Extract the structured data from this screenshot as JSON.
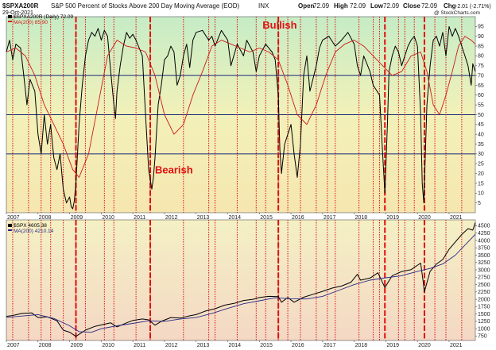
{
  "header": {
    "symbol": "$SPXA200R",
    "description": "S&P 500 Percent of Stocks Above 200 Day Moving Average (EOD)",
    "index": "INX",
    "date": "29-Oct-2021",
    "open_label": "Open",
    "open": "72.09",
    "high_label": "High",
    "high": "72.09",
    "low_label": "Low",
    "low": "72.09",
    "close_label": "Close",
    "close": "72.09",
    "chg_label": "Chg",
    "chg": "-2.01 (-2.71%)",
    "watermark": "@ StockCharts.com"
  },
  "colors": {
    "price_line": "#000000",
    "ma_upper": "#d01818",
    "ma_lower": "#2a2a8a",
    "vertical_markers": "#e01010",
    "horizontal_levels": "#1a2a7a",
    "bg_top": "#c6ecc6",
    "bg_mid": "#f4f0b0",
    "bg_bottom": "#f6dcc4"
  },
  "chart_data": [
    {
      "type": "line",
      "legend": [
        "$SPXA200R (Daily) 72.09",
        "MA(200) 85.90"
      ],
      "ylim": [
        0,
        100
      ],
      "y_ticks": [
        "95",
        "90",
        "85",
        "80",
        "75",
        "70",
        "65",
        "60",
        "55",
        "50",
        "45",
        "40",
        "35",
        "30",
        "25",
        "20",
        "15",
        "10",
        "5"
      ],
      "y_tick_values": [
        95,
        90,
        85,
        80,
        75,
        70,
        65,
        60,
        55,
        50,
        45,
        40,
        35,
        30,
        25,
        20,
        15,
        10,
        5
      ],
      "horizontal_levels": [
        70,
        50,
        30
      ],
      "x_ticks": [
        "2007",
        "2008",
        "2009",
        "2010",
        "2011",
        "2012",
        "2013",
        "2014",
        "2015",
        "2016",
        "2017",
        "2018",
        "2019",
        "2020",
        "2021"
      ],
      "x_tick_values": [
        2007,
        2008,
        2009,
        2010,
        2011,
        2012,
        2013,
        2014,
        2015,
        2016,
        2017,
        2018,
        2019,
        2020,
        2021
      ],
      "xlim": [
        2007.0,
        2021.83
      ],
      "annotations": [
        {
          "text": "Bullish",
          "x": 2015.1,
          "y": 94
        },
        {
          "text": "Bearish",
          "x": 2011.7,
          "y": 20
        }
      ],
      "series": [
        {
          "name": "$SPXA200R (Daily) 72.09",
          "x": [
            2007.0,
            2007.1,
            2007.2,
            2007.3,
            2007.45,
            2007.55,
            2007.65,
            2007.75,
            2007.9,
            2008.0,
            2008.1,
            2008.2,
            2008.3,
            2008.4,
            2008.5,
            2008.6,
            2008.7,
            2008.8,
            2008.9,
            2009.0,
            2009.05,
            2009.1,
            2009.15,
            2009.2,
            2009.3,
            2009.4,
            2009.5,
            2009.6,
            2009.7,
            2009.8,
            2009.9,
            2010.0,
            2010.1,
            2010.2,
            2010.3,
            2010.4,
            2010.45,
            2010.5,
            2010.6,
            2010.7,
            2010.8,
            2010.9,
            2011.0,
            2011.1,
            2011.2,
            2011.3,
            2011.4,
            2011.5,
            2011.6,
            2011.65,
            2011.7,
            2011.8,
            2011.9,
            2012.0,
            2012.1,
            2012.2,
            2012.3,
            2012.4,
            2012.5,
            2012.6,
            2012.7,
            2012.8,
            2012.9,
            2013.0,
            2013.2,
            2013.4,
            2013.5,
            2013.6,
            2013.8,
            2014.0,
            2014.1,
            2014.3,
            2014.5,
            2014.6,
            2014.8,
            2014.9,
            2015.0,
            2015.2,
            2015.4,
            2015.5,
            2015.6,
            2015.65,
            2015.7,
            2015.8,
            2015.9,
            2016.0,
            2016.1,
            2016.2,
            2016.3,
            2016.4,
            2016.5,
            2016.6,
            2016.8,
            2016.9,
            2017.0,
            2017.2,
            2017.4,
            2017.6,
            2017.8,
            2018.0,
            2018.1,
            2018.2,
            2018.3,
            2018.5,
            2018.6,
            2018.8,
            2018.9,
            2018.97,
            2019.05,
            2019.1,
            2019.2,
            2019.3,
            2019.4,
            2019.5,
            2019.6,
            2019.7,
            2019.8,
            2019.9,
            2020.0,
            2020.1,
            2020.15,
            2020.2,
            2020.25,
            2020.3,
            2020.4,
            2020.5,
            2020.6,
            2020.7,
            2020.8,
            2020.9,
            2021.0,
            2021.1,
            2021.2,
            2021.3,
            2021.4,
            2021.5,
            2021.6,
            2021.7,
            2021.75,
            2021.83
          ],
          "values": [
            82,
            88,
            78,
            86,
            84,
            70,
            55,
            68,
            62,
            40,
            30,
            50,
            35,
            45,
            28,
            22,
            30,
            12,
            5,
            8,
            3,
            2,
            6,
            15,
            45,
            65,
            80,
            88,
            92,
            90,
            94,
            88,
            93,
            90,
            72,
            55,
            48,
            62,
            75,
            85,
            92,
            89,
            91,
            88,
            84,
            80,
            50,
            22,
            12,
            18,
            28,
            55,
            65,
            78,
            80,
            85,
            82,
            65,
            70,
            80,
            86,
            74,
            88,
            92,
            93,
            88,
            90,
            85,
            93,
            88,
            75,
            86,
            80,
            88,
            82,
            72,
            80,
            86,
            82,
            78,
            60,
            32,
            20,
            35,
            40,
            45,
            30,
            18,
            35,
            70,
            80,
            62,
            75,
            84,
            88,
            90,
            85,
            88,
            92,
            86,
            75,
            70,
            80,
            72,
            65,
            60,
            30,
            10,
            45,
            72,
            80,
            85,
            82,
            75,
            80,
            85,
            88,
            90,
            85,
            50,
            15,
            5,
            30,
            55,
            75,
            88,
            90,
            85,
            92,
            80,
            95,
            90,
            94,
            90,
            85,
            80,
            75,
            65,
            76,
            72
          ]
        },
        {
          "name": "MA(200) 85.90",
          "x": [
            2007.0,
            2007.3,
            2007.6,
            2007.9,
            2008.2,
            2008.5,
            2008.8,
            2009.1,
            2009.3,
            2009.6,
            2009.9,
            2010.2,
            2010.5,
            2010.8,
            2011.1,
            2011.4,
            2011.7,
            2012.0,
            2012.3,
            2012.6,
            2012.9,
            2013.2,
            2013.5,
            2013.8,
            2014.1,
            2014.4,
            2014.7,
            2015.0,
            2015.3,
            2015.6,
            2015.9,
            2016.2,
            2016.5,
            2016.8,
            2017.1,
            2017.4,
            2017.7,
            2018.0,
            2018.3,
            2018.6,
            2018.9,
            2019.2,
            2019.5,
            2019.8,
            2020.1,
            2020.3,
            2020.5,
            2020.7,
            2020.9,
            2021.1,
            2021.3,
            2021.5,
            2021.7,
            2021.83
          ],
          "values": [
            82,
            84,
            80,
            70,
            55,
            45,
            35,
            22,
            18,
            30,
            55,
            80,
            88,
            85,
            84,
            82,
            70,
            50,
            40,
            45,
            60,
            72,
            85,
            88,
            86,
            84,
            82,
            84,
            82,
            78,
            65,
            50,
            45,
            55,
            70,
            82,
            86,
            88,
            85,
            80,
            75,
            70,
            72,
            80,
            82,
            72,
            55,
            50,
            60,
            72,
            85,
            90,
            88,
            86
          ]
        }
      ]
    },
    {
      "type": "line",
      "legend": [
        "$SPX 4605.38",
        "MA(200) 4210.14"
      ],
      "ylim": [
        600,
        4700
      ],
      "y_ticks": [
        "4500",
        "4250",
        "4000",
        "3750",
        "3500",
        "3250",
        "3000",
        "2750",
        "2500",
        "2250",
        "2000",
        "1750",
        "1500",
        "1250",
        "1000",
        "750"
      ],
      "y_tick_values": [
        4500,
        4250,
        4000,
        3750,
        3500,
        3250,
        3000,
        2750,
        2500,
        2250,
        2000,
        1750,
        1500,
        1250,
        1000,
        750
      ],
      "x_ticks": [
        "2007",
        "2008",
        "2009",
        "2010",
        "2011",
        "2012",
        "2013",
        "2014",
        "2015",
        "2016",
        "2017",
        "2018",
        "2019",
        "2020",
        "2021"
      ],
      "x_tick_values": [
        2007,
        2008,
        2009,
        2010,
        2011,
        2012,
        2013,
        2014,
        2015,
        2016,
        2017,
        2018,
        2019,
        2020,
        2021
      ],
      "xlim": [
        2007.0,
        2021.83
      ],
      "series": [
        {
          "name": "$SPX 4605.38",
          "x": [
            2007.0,
            2007.2,
            2007.5,
            2007.8,
            2008.0,
            2008.3,
            2008.6,
            2008.8,
            2009.0,
            2009.2,
            2009.5,
            2009.8,
            2010.0,
            2010.3,
            2010.5,
            2010.8,
            2011.0,
            2011.3,
            2011.5,
            2011.7,
            2011.9,
            2012.2,
            2012.5,
            2012.8,
            2013.0,
            2013.3,
            2013.6,
            2013.9,
            2014.2,
            2014.5,
            2014.8,
            2015.0,
            2015.3,
            2015.6,
            2015.7,
            2015.9,
            2016.1,
            2016.4,
            2016.7,
            2017.0,
            2017.3,
            2017.6,
            2017.9,
            2018.1,
            2018.2,
            2018.5,
            2018.75,
            2018.97,
            2019.2,
            2019.5,
            2019.8,
            2020.1,
            2020.18,
            2020.22,
            2020.4,
            2020.6,
            2020.8,
            2021.0,
            2021.2,
            2021.4,
            2021.6,
            2021.75,
            2021.83
          ],
          "values": [
            1420,
            1450,
            1520,
            1540,
            1380,
            1400,
            1270,
            950,
            880,
            740,
            950,
            1080,
            1130,
            1200,
            1060,
            1200,
            1280,
            1330,
            1300,
            1120,
            1250,
            1380,
            1360,
            1440,
            1480,
            1600,
            1680,
            1800,
            1860,
            1960,
            2000,
            2060,
            2100,
            2090,
            1900,
            2060,
            1900,
            2070,
            2170,
            2270,
            2380,
            2450,
            2580,
            2850,
            2650,
            2720,
            2900,
            2400,
            2800,
            2940,
            3010,
            3230,
            2600,
            2250,
            2950,
            3200,
            3350,
            3700,
            3950,
            4200,
            4400,
            4350,
            4605
          ]
        },
        {
          "name": "MA(200) 4210.14",
          "x": [
            2007.0,
            2007.5,
            2008.0,
            2008.5,
            2009.0,
            2009.3,
            2009.7,
            2010.0,
            2010.5,
            2011.0,
            2011.5,
            2012.0,
            2012.5,
            2013.0,
            2013.5,
            2014.0,
            2014.5,
            2015.0,
            2015.5,
            2016.0,
            2016.5,
            2017.0,
            2017.5,
            2018.0,
            2018.5,
            2019.0,
            2019.5,
            2020.0,
            2020.4,
            2020.8,
            2021.2,
            2021.6,
            2021.83
          ],
          "values": [
            1380,
            1430,
            1480,
            1350,
            1100,
            900,
            880,
            1000,
            1100,
            1180,
            1270,
            1250,
            1330,
            1380,
            1520,
            1690,
            1850,
            1950,
            2050,
            2020,
            2010,
            2100,
            2300,
            2500,
            2650,
            2730,
            2800,
            2950,
            3050,
            3200,
            3500,
            3950,
            4210
          ]
        }
      ]
    }
  ],
  "vertical_markers": [
    2007.2,
    2007.7,
    2008.1,
    2008.4,
    2008.8,
    2009.2,
    2009.5,
    2010.1,
    2010.4,
    2011.1,
    2011.55,
    2012.6,
    2013.4,
    2013.6,
    2014.3,
    2014.9,
    2015.2,
    2015.6,
    2015.9,
    2016.3,
    2016.8,
    2017.15,
    2017.4,
    2018.15,
    2018.6,
    2018.8,
    2019.4,
    2019.6,
    2019.9,
    2020.55,
    2020.9,
    2021.4
  ],
  "major_markers": [
    2009.2,
    2011.55,
    2015.6,
    2018.97,
    2020.22
  ]
}
